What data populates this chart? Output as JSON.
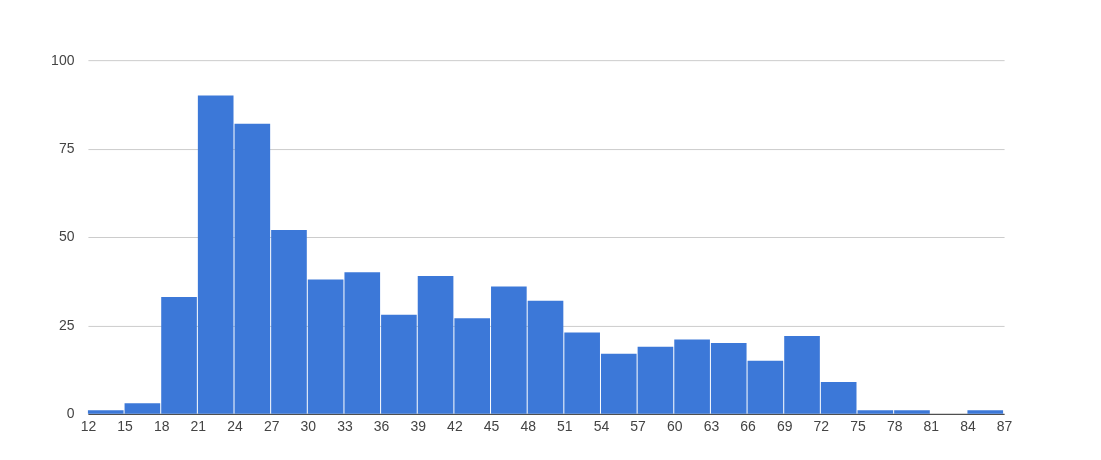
{
  "chart_data": {
    "type": "histogram",
    "bins": [
      12,
      15,
      18,
      21,
      24,
      27,
      30,
      33,
      36,
      39,
      42,
      45,
      48,
      51,
      54,
      57,
      60,
      63,
      66,
      69,
      72,
      75,
      78,
      81,
      84,
      87
    ],
    "values": [
      1,
      3,
      33,
      90,
      82,
      52,
      38,
      40,
      28,
      39,
      27,
      36,
      32,
      23,
      17,
      19,
      21,
      20,
      15,
      22,
      9,
      1,
      1,
      0,
      1
    ],
    "color": "#3c78d8",
    "xlim": [
      12,
      87
    ],
    "xticks": [
      12,
      15,
      18,
      21,
      24,
      27,
      30,
      33,
      36,
      39,
      42,
      45,
      48,
      51,
      54,
      57,
      60,
      63,
      66,
      69,
      72,
      75,
      78,
      81,
      84,
      87
    ],
    "ylim": [
      0,
      100
    ],
    "yticks": [
      0,
      25,
      50,
      75,
      100
    ],
    "grid": "y"
  }
}
